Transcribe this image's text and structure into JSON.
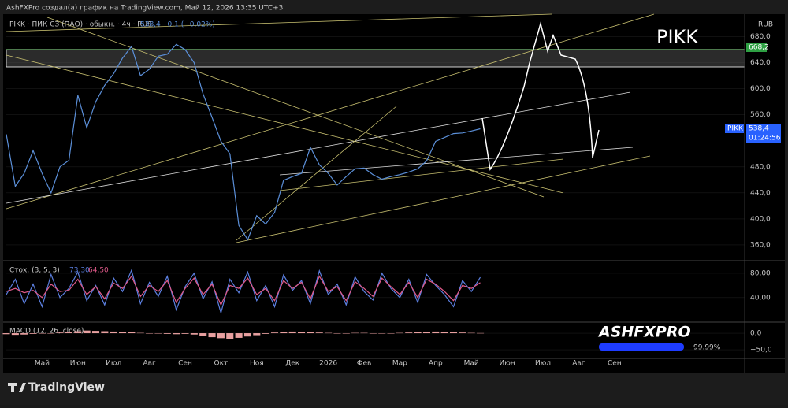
{
  "header": "AshFXPro создал(а) график на TradingView.com, Май 12, 2026 13:35 UTC+3",
  "brand": "TradingView",
  "watermark": "ASHFXPRO",
  "watermark_pct": "99.99%",
  "chart_data": [
    {
      "type": "line",
      "title": "PIKK · ПИК СЗ (ПАО) · обыкн. · 4ч · RUS",
      "last_label": "538,4",
      "change": "−0,1 (−0,02%)",
      "annotation": "PIKK",
      "currency": "RUB",
      "level_label": "668,2",
      "price_label_name": "PIKK",
      "price_label_value": "538,4",
      "countdown": "01:24:56",
      "color": "#5b8fd8",
      "categories": [
        null,
        null,
        null,
        null,
        "Май",
        null,
        null,
        null,
        "Июн",
        null,
        null,
        null,
        "Июл",
        null,
        null,
        null,
        "Авг",
        null,
        null,
        null,
        "Сен",
        null,
        null,
        null,
        "Окт",
        null,
        null,
        null,
        "Ноя",
        null,
        null,
        null,
        "Дек",
        null,
        null,
        null,
        "2026",
        null,
        null,
        null,
        "Фев",
        null,
        null,
        null,
        "Мар",
        null,
        null,
        null,
        "Апр",
        null,
        null,
        null,
        "Май",
        null,
        null,
        null,
        "Июн",
        null,
        null,
        null,
        "Июл",
        null,
        null,
        null,
        "Авг",
        null,
        null,
        null,
        "Сен",
        null,
        null,
        null,
        null,
        null,
        null,
        null,
        null,
        null,
        null,
        null,
        null,
        null,
        null
      ],
      "values": [
        530,
        450,
        470,
        505,
        470,
        440,
        480,
        490,
        590,
        540,
        580,
        605,
        623,
        647,
        665,
        620,
        630,
        650,
        653,
        668,
        660,
        640,
        592,
        556,
        519,
        500,
        390,
        368,
        405,
        392,
        410,
        459,
        465,
        470,
        510,
        483,
        470,
        452,
        465,
        477,
        478,
        468,
        461,
        465,
        468,
        472,
        477,
        489,
        519,
        525,
        531,
        532,
        535,
        538.4,
        null,
        null,
        null,
        null,
        null,
        null,
        null,
        null,
        null,
        null,
        null,
        null,
        null,
        null,
        null,
        null,
        null,
        null,
        null,
        null,
        null,
        null,
        null,
        null,
        null,
        null,
        null,
        null,
        null
      ],
      "ylim": [
        337,
        712
      ],
      "yticks": [
        {
          "value": 680,
          "label": "680,0"
        },
        {
          "value": 640,
          "label": "640,0"
        },
        {
          "value": 600,
          "label": "600,0"
        },
        {
          "value": 560,
          "label": "560,0"
        },
        {
          "value": 480,
          "label": "480,0"
        },
        {
          "value": 440,
          "label": "440,0"
        },
        {
          "value": 400,
          "label": "400,0"
        },
        {
          "value": 360,
          "label": "360,0"
        }
      ]
    },
    {
      "type": "line",
      "title": "Стох. (3, 5, 3)",
      "last_labels": [
        "73,30",
        "64,50"
      ],
      "ylim": [
        1,
        98
      ],
      "yticks": [
        {
          "value": 80,
          "label": "80,00"
        },
        {
          "value": 40,
          "label": "40,00"
        }
      ],
      "series": [
        {
          "color": "#5b7fe0",
          "values": [
            45,
            70,
            30,
            62,
            25,
            78,
            40,
            55,
            82,
            35,
            60,
            28,
            72,
            50,
            85,
            30,
            65,
            42,
            75,
            20,
            58,
            80,
            38,
            66,
            15,
            70,
            48,
            82,
            35,
            60,
            25,
            77,
            52,
            68,
            30,
            84,
            45,
            62,
            28,
            74,
            50,
            36,
            80,
            55,
            40,
            70,
            32,
            78,
            60,
            45,
            25,
            68,
            50,
            73.3
          ]
        },
        {
          "color": "#e05a8a",
          "values": [
            50,
            55,
            48,
            52,
            40,
            62,
            50,
            52,
            70,
            45,
            58,
            38,
            64,
            55,
            75,
            42,
            60,
            50,
            68,
            32,
            55,
            72,
            45,
            62,
            28,
            60,
            55,
            72,
            45,
            55,
            35,
            68,
            55,
            65,
            38,
            75,
            50,
            58,
            35,
            66,
            55,
            42,
            72,
            58,
            45,
            65,
            40,
            70,
            62,
            50,
            35,
            60,
            55,
            64.5
          ]
        }
      ]
    },
    {
      "type": "bar",
      "title": "MACD (12, 26, close)",
      "color": "#e8a0a0",
      "ylim": [
        -76,
        31
      ],
      "yticks": [
        {
          "value": 0,
          "label": "0,0"
        },
        {
          "value": -50,
          "label": "−50,0"
        }
      ],
      "values": [
        -3,
        -5,
        -4,
        -2,
        -1,
        0,
        2,
        4,
        6,
        8,
        7,
        6,
        5,
        4,
        3,
        1,
        0,
        -1,
        -2,
        -3,
        -2,
        -4,
        -8,
        -12,
        -15,
        -18,
        -14,
        -10,
        -6,
        -2,
        2,
        4,
        5,
        4,
        3,
        2,
        1,
        0,
        0,
        1,
        1,
        0,
        -1,
        0,
        1,
        2,
        3,
        4,
        5,
        4,
        3,
        2,
        1,
        0.5
      ]
    }
  ]
}
